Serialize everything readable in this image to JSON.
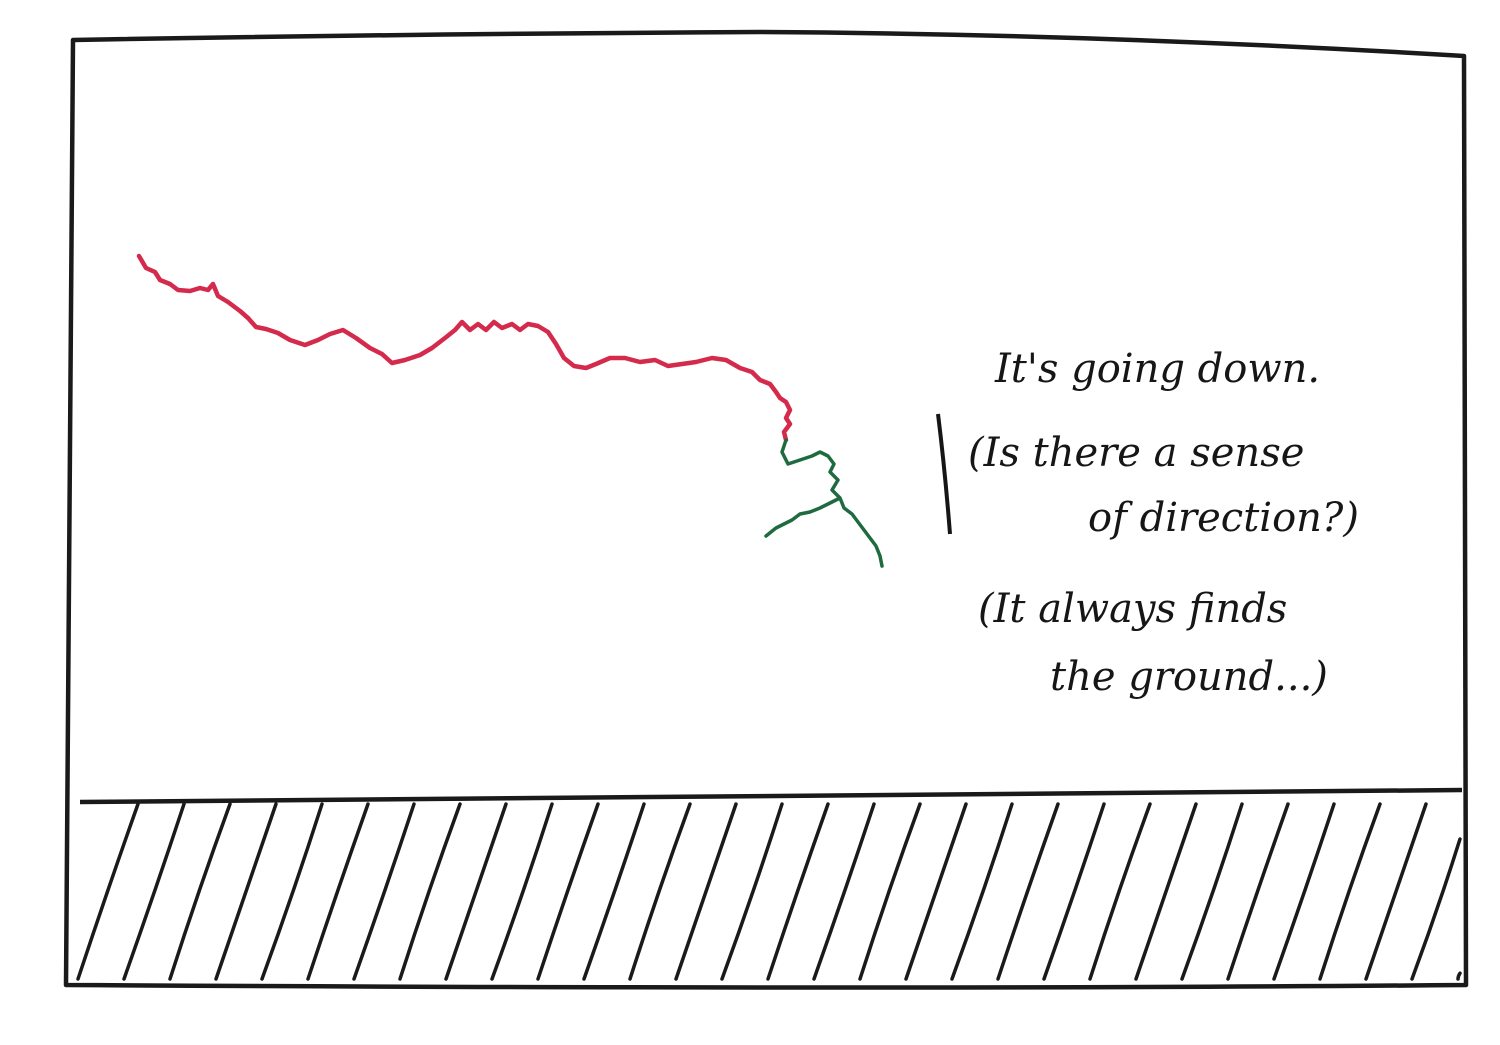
{
  "annotations": {
    "line1": "It's going down.",
    "line2": "(Is there a sense",
    "line3": "of direction?)",
    "line4": "(It always finds",
    "line5": "the ground...)"
  },
  "colors": {
    "frame": "#1a1a1a",
    "ink": "#161616",
    "ground_hatch": "#1a1a1a",
    "path_early": "#d42a4c",
    "path_late": "#1f6b3f"
  },
  "icons": {
    "ground": "hatched-ground",
    "trace_early": "random-walk-path-red",
    "trace_late": "random-walk-path-green"
  }
}
